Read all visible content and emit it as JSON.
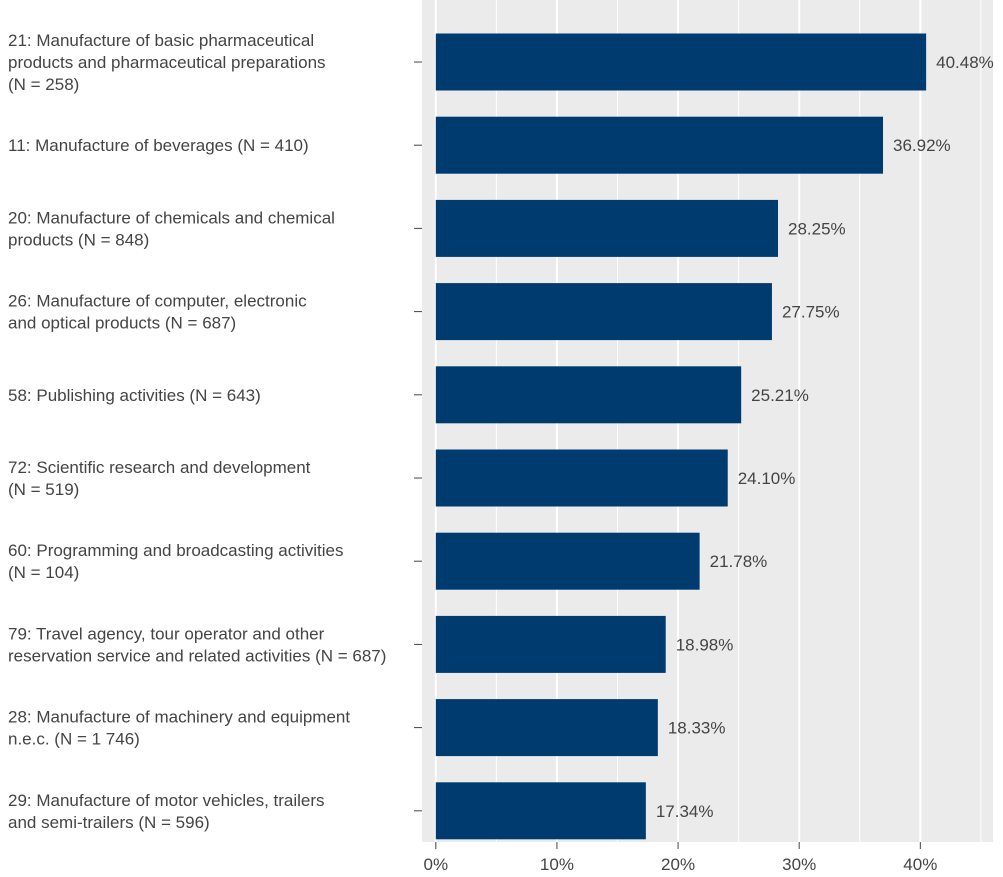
{
  "chart_data": {
    "type": "bar",
    "orientation": "horizontal",
    "title": "",
    "xlabel": "",
    "ylabel": "",
    "xlim": [
      -0.0114,
      0.46
    ],
    "grid": true,
    "legend": "none",
    "colors": {
      "bar": "#003b6f",
      "panel": "#ebebeb",
      "gridline": "#ffffff",
      "text": "#444444"
    },
    "x_ticks": [
      {
        "value": 0.0,
        "label": "0%"
      },
      {
        "value": 0.1,
        "label": "10%"
      },
      {
        "value": 0.2,
        "label": "20%"
      },
      {
        "value": 0.3,
        "label": "30%"
      },
      {
        "value": 0.4,
        "label": "40%"
      }
    ],
    "categories": [
      {
        "lines": [
          "21: Manufacture of basic pharmaceutical",
          "products and pharmaceutical preparations",
          "(N = 258)"
        ]
      },
      {
        "lines": [
          "11: Manufacture of beverages (N = 410)"
        ]
      },
      {
        "lines": [
          "20: Manufacture of chemicals and chemical",
          "products (N = 848)"
        ]
      },
      {
        "lines": [
          "26: Manufacture of computer, electronic",
          "and optical products (N = 687)"
        ]
      },
      {
        "lines": [
          "58: Publishing activities (N = 643)"
        ]
      },
      {
        "lines": [
          "72: Scientific research and development",
          "(N = 519)"
        ]
      },
      {
        "lines": [
          "60: Programming and broadcasting activities",
          "(N = 104)"
        ]
      },
      {
        "lines": [
          "79: Travel agency, tour operator and other",
          "reservation service and related activities (N = 687)"
        ]
      },
      {
        "lines": [
          "28: Manufacture of machinery and equipment",
          "n.e.c. (N = 1 746)"
        ]
      },
      {
        "lines": [
          "29: Manufacture of motor vehicles, trailers",
          "and semi-trailers (N = 596)"
        ]
      }
    ],
    "values": [
      0.4048,
      0.3692,
      0.2825,
      0.2775,
      0.2521,
      0.241,
      0.2178,
      0.1898,
      0.1833,
      0.1734
    ],
    "value_labels": [
      "40.48%",
      "36.92%",
      "28.25%",
      "27.75%",
      "25.21%",
      "24.10%",
      "21.78%",
      "18.98%",
      "18.33%",
      "17.34%"
    ]
  }
}
